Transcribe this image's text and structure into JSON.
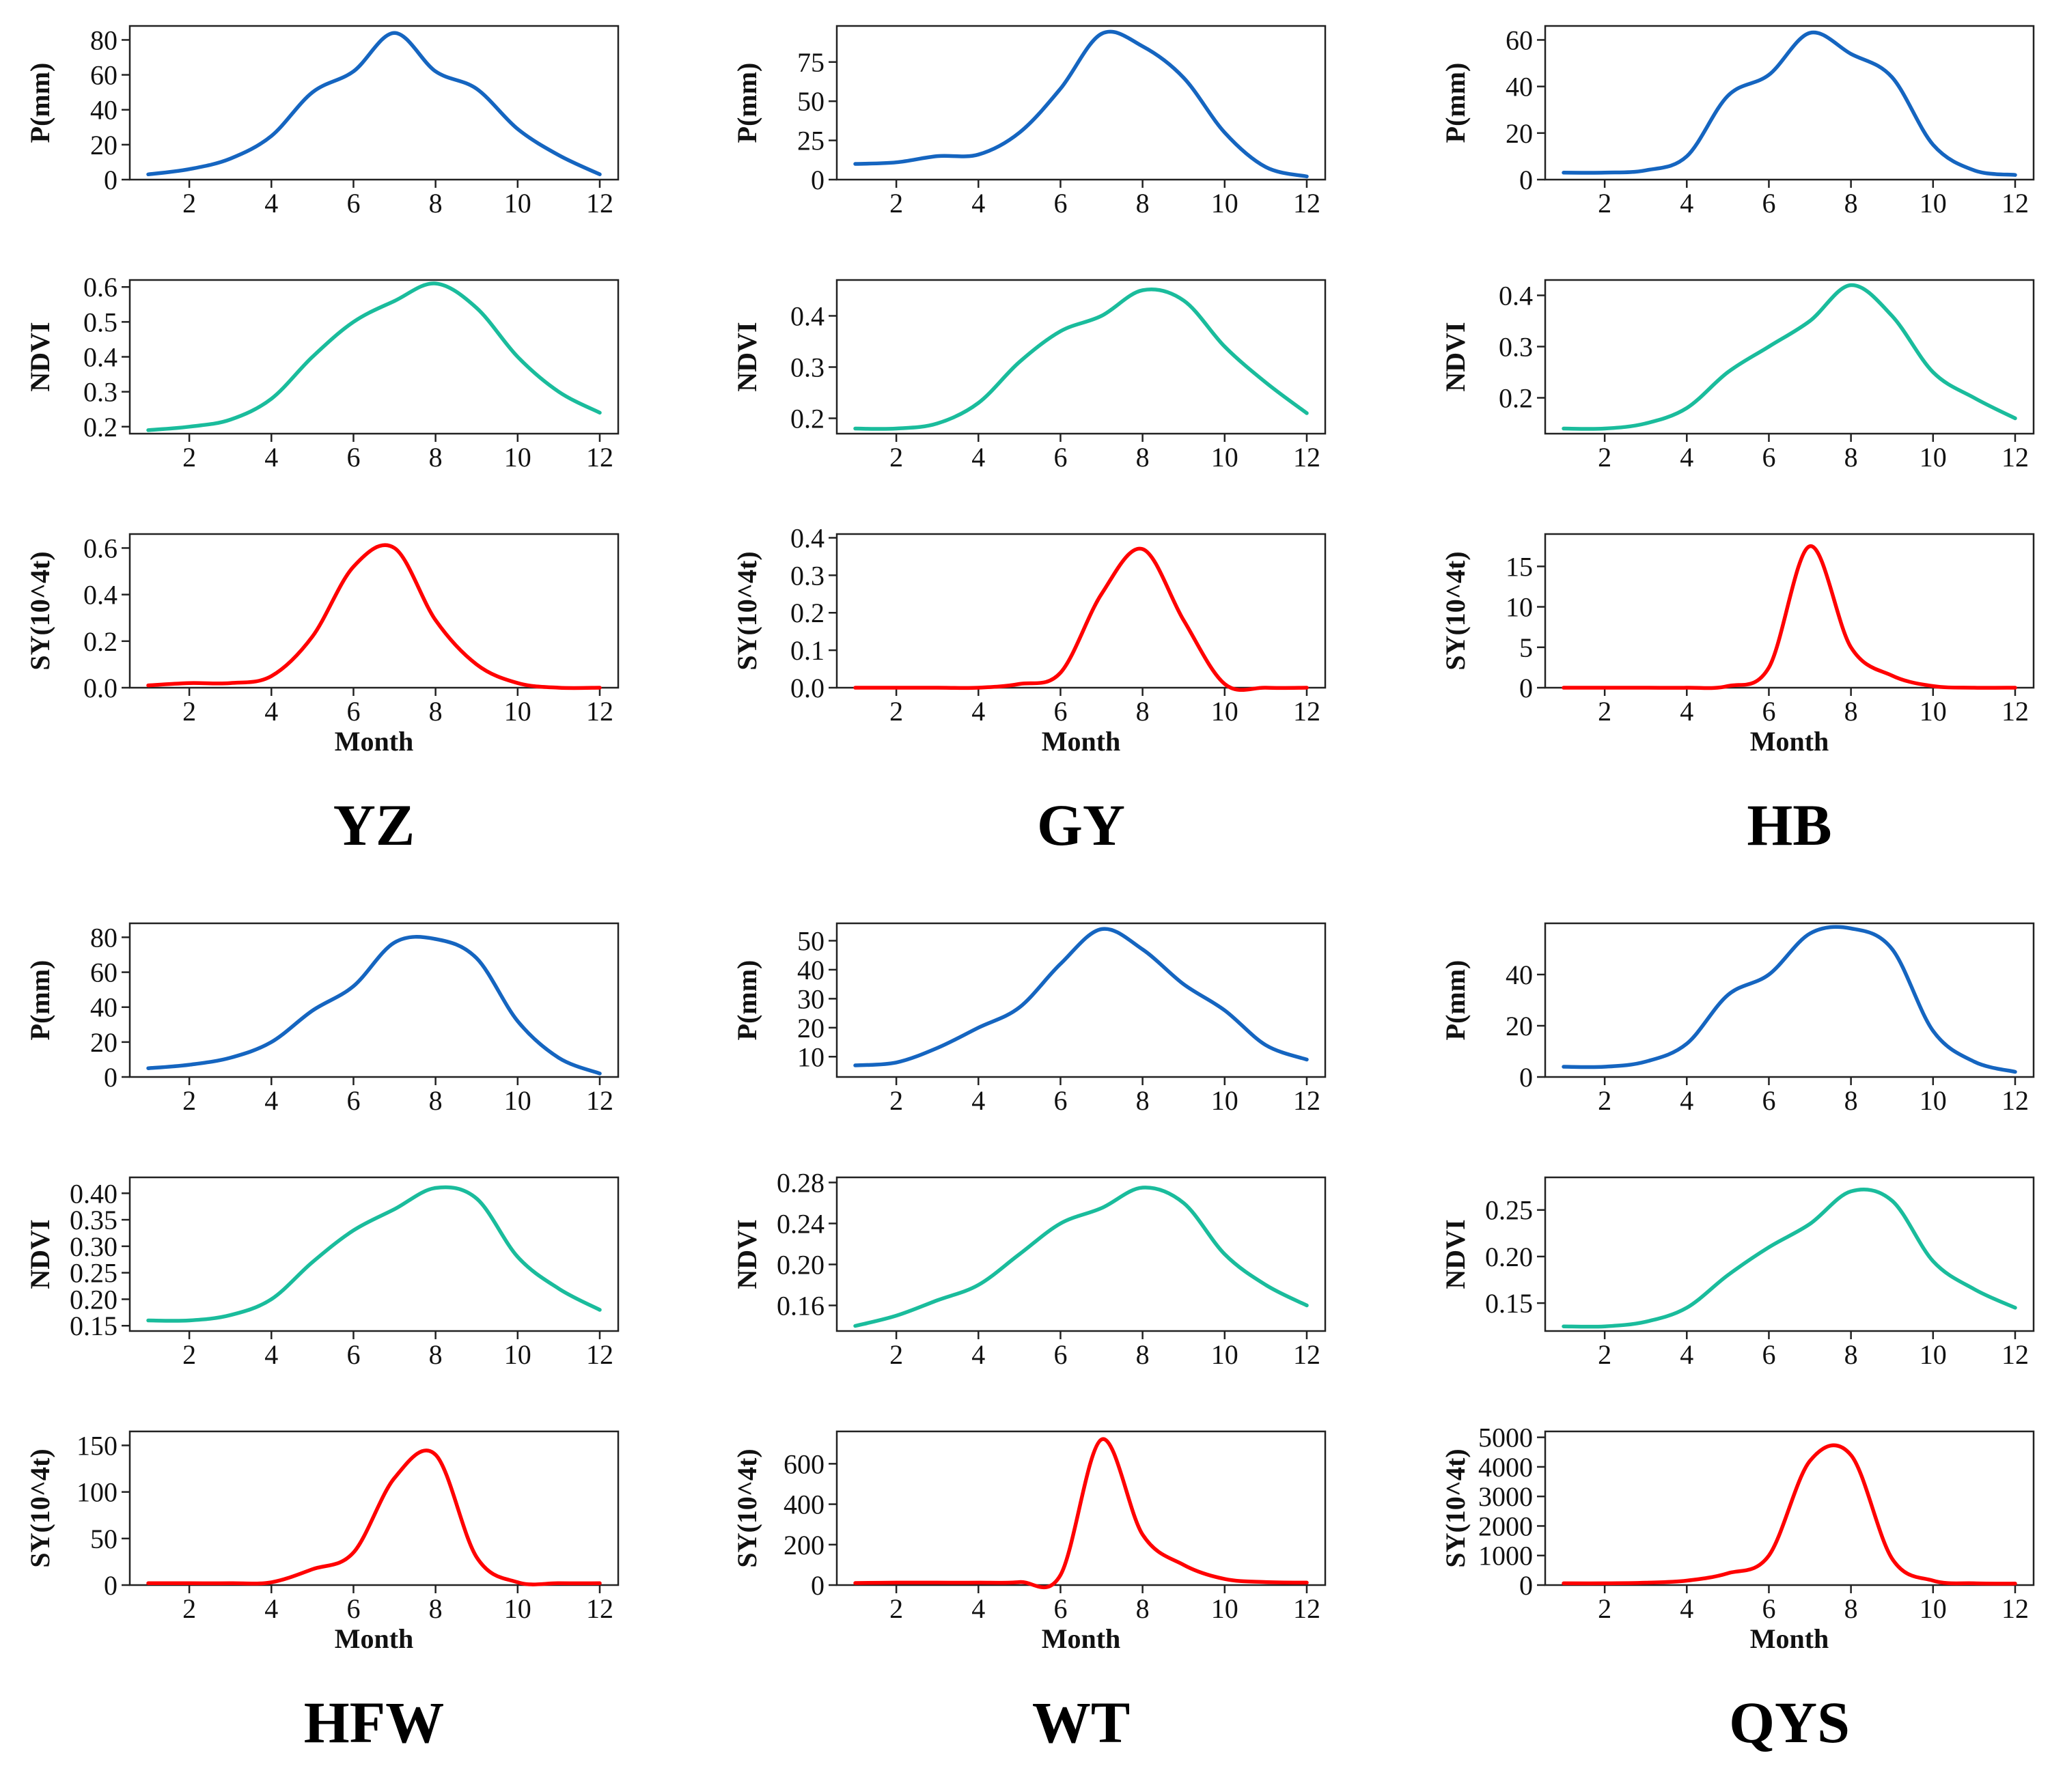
{
  "colors": {
    "precip": "#1565C0",
    "ndvi": "#1ABC9C",
    "sy": "#FF0000",
    "axis": "#222222"
  },
  "chart_data": [
    {
      "type": "line",
      "title": "YZ",
      "xlabel": "Month",
      "x": [
        1,
        2,
        3,
        4,
        5,
        6,
        7,
        8,
        9,
        10,
        11,
        12
      ],
      "xticks": [
        "2",
        "4",
        "6",
        "8",
        "10",
        "12"
      ],
      "subplots": [
        {
          "name": "P",
          "ylabel": "P(mm)",
          "color": "precip",
          "ylim": [
            0,
            88
          ],
          "yticks": [
            0,
            20,
            40,
            60,
            80
          ],
          "yticklabels": [
            "0",
            "20",
            "40",
            "60",
            "80"
          ],
          "values": [
            3,
            6,
            12,
            25,
            50,
            62,
            84,
            62,
            52,
            29,
            14,
            3
          ]
        },
        {
          "name": "NDVI",
          "ylabel": "NDVI",
          "color": "ndvi",
          "ylim": [
            0.18,
            0.62
          ],
          "yticks": [
            0.2,
            0.3,
            0.4,
            0.5,
            0.6
          ],
          "yticklabels": [
            "0.2",
            "0.3",
            "0.4",
            "0.5",
            "0.6"
          ],
          "values": [
            0.19,
            0.2,
            0.22,
            0.28,
            0.4,
            0.5,
            0.56,
            0.61,
            0.54,
            0.4,
            0.3,
            0.24
          ]
        },
        {
          "name": "SY",
          "ylabel": "SY(10^4t)",
          "color": "sy",
          "ylim": [
            0,
            0.66
          ],
          "yticks": [
            0,
            0.2,
            0.4,
            0.6
          ],
          "yticklabels": [
            "0.0",
            "0.2",
            "0.4",
            "0.6"
          ],
          "values": [
            0.01,
            0.02,
            0.02,
            0.05,
            0.22,
            0.52,
            0.6,
            0.29,
            0.1,
            0.02,
            0.0,
            0.0
          ]
        }
      ]
    },
    {
      "type": "line",
      "title": "GY",
      "xlabel": "Month",
      "x": [
        1,
        2,
        3,
        4,
        5,
        6,
        7,
        8,
        9,
        10,
        11,
        12
      ],
      "xticks": [
        "2",
        "4",
        "6",
        "8",
        "10",
        "12"
      ],
      "subplots": [
        {
          "name": "P",
          "ylabel": "P(mm)",
          "color": "precip",
          "ylim": [
            0,
            98
          ],
          "yticks": [
            0,
            25,
            50,
            75
          ],
          "yticklabels": [
            "0",
            "25",
            "50",
            "75"
          ],
          "values": [
            10,
            11,
            15,
            16,
            30,
            58,
            93,
            85,
            65,
            30,
            8,
            2
          ]
        },
        {
          "name": "NDVI",
          "ylabel": "NDVI",
          "color": "ndvi",
          "ylim": [
            0.17,
            0.47
          ],
          "yticks": [
            0.2,
            0.3,
            0.4
          ],
          "yticklabels": [
            "0.2",
            "0.3",
            "0.4"
          ],
          "values": [
            0.18,
            0.18,
            0.19,
            0.23,
            0.31,
            0.37,
            0.4,
            0.45,
            0.43,
            0.34,
            0.27,
            0.21
          ]
        },
        {
          "name": "SY",
          "ylabel": "SY(10^4t)",
          "color": "sy",
          "ylim": [
            0,
            0.41
          ],
          "yticks": [
            0,
            0.1,
            0.2,
            0.3,
            0.4
          ],
          "yticklabels": [
            "0.0",
            "0.1",
            "0.2",
            "0.3",
            "0.4"
          ],
          "values": [
            0.0,
            0.0,
            0.0,
            0.0,
            0.01,
            0.04,
            0.25,
            0.37,
            0.18,
            0.01,
            0.0,
            0.0
          ]
        }
      ]
    },
    {
      "type": "line",
      "title": "HB",
      "xlabel": "Month",
      "x": [
        1,
        2,
        3,
        4,
        5,
        6,
        7,
        8,
        9,
        10,
        11,
        12
      ],
      "xticks": [
        "2",
        "4",
        "6",
        "8",
        "10",
        "12"
      ],
      "subplots": [
        {
          "name": "P",
          "ylabel": "P(mm)",
          "color": "precip",
          "ylim": [
            0,
            66
          ],
          "yticks": [
            0,
            20,
            40,
            60
          ],
          "yticklabels": [
            "0",
            "20",
            "40",
            "60"
          ],
          "values": [
            3,
            3,
            4,
            10,
            36,
            45,
            63,
            54,
            44,
            15,
            4,
            2
          ]
        },
        {
          "name": "NDVI",
          "ylabel": "NDVI",
          "color": "ndvi",
          "ylim": [
            0.13,
            0.43
          ],
          "yticks": [
            0.2,
            0.3,
            0.4
          ],
          "yticklabels": [
            "0.2",
            "0.3",
            "0.4"
          ],
          "values": [
            0.14,
            0.14,
            0.15,
            0.18,
            0.25,
            0.3,
            0.35,
            0.42,
            0.36,
            0.25,
            0.2,
            0.16
          ]
        },
        {
          "name": "SY",
          "ylabel": "SY(10^4t)",
          "color": "sy",
          "ylim": [
            0,
            19
          ],
          "yticks": [
            0,
            5,
            10,
            15
          ],
          "yticklabels": [
            "0",
            "5",
            "10",
            "15"
          ],
          "values": [
            0,
            0,
            0,
            0,
            0.2,
            2.5,
            17.5,
            5,
            1.5,
            0.2,
            0,
            0
          ]
        }
      ]
    },
    {
      "type": "line",
      "title": "HFW",
      "xlabel": "Month",
      "x": [
        1,
        2,
        3,
        4,
        5,
        6,
        7,
        8,
        9,
        10,
        11,
        12
      ],
      "xticks": [
        "2",
        "4",
        "6",
        "8",
        "10",
        "12"
      ],
      "subplots": [
        {
          "name": "P",
          "ylabel": "P(mm)",
          "color": "precip",
          "ylim": [
            0,
            88
          ],
          "yticks": [
            0,
            20,
            40,
            60,
            80
          ],
          "yticklabels": [
            "0",
            "20",
            "40",
            "60",
            "80"
          ],
          "values": [
            5,
            7,
            11,
            20,
            38,
            52,
            77,
            79,
            68,
            32,
            11,
            2
          ]
        },
        {
          "name": "NDVI",
          "ylabel": "NDVI",
          "color": "ndvi",
          "ylim": [
            0.14,
            0.43
          ],
          "yticks": [
            0.15,
            0.2,
            0.25,
            0.3,
            0.35,
            0.4
          ],
          "yticklabels": [
            "0.15",
            "0.20",
            "0.25",
            "0.30",
            "0.35",
            "0.40"
          ],
          "values": [
            0.16,
            0.16,
            0.17,
            0.2,
            0.27,
            0.33,
            0.37,
            0.41,
            0.39,
            0.28,
            0.22,
            0.18
          ]
        },
        {
          "name": "SY",
          "ylabel": "SY(10^4t)",
          "color": "sy",
          "ylim": [
            0,
            165
          ],
          "yticks": [
            0,
            50,
            100,
            150
          ],
          "yticklabels": [
            "0",
            "50",
            "100",
            "150"
          ],
          "values": [
            2,
            2,
            2,
            3,
            17,
            35,
            115,
            140,
            30,
            3,
            2,
            2
          ]
        }
      ]
    },
    {
      "type": "line",
      "title": "WT",
      "xlabel": "Month",
      "x": [
        1,
        2,
        3,
        4,
        5,
        6,
        7,
        8,
        9,
        10,
        11,
        12
      ],
      "xticks": [
        "2",
        "4",
        "6",
        "8",
        "10",
        "12"
      ],
      "subplots": [
        {
          "name": "P",
          "ylabel": "P(mm)",
          "color": "precip",
          "ylim": [
            3,
            56
          ],
          "yticks": [
            10,
            20,
            30,
            40,
            50
          ],
          "yticklabels": [
            "10",
            "20",
            "30",
            "40",
            "50"
          ],
          "values": [
            7,
            8,
            13,
            20,
            27,
            42,
            54,
            47,
            35,
            26,
            14,
            9
          ]
        },
        {
          "name": "NDVI",
          "ylabel": "NDVI",
          "color": "ndvi",
          "ylim": [
            0.135,
            0.285
          ],
          "yticks": [
            0.16,
            0.2,
            0.24,
            0.28
          ],
          "yticklabels": [
            "0.16",
            "0.20",
            "0.24",
            "0.28"
          ],
          "values": [
            0.14,
            0.15,
            0.165,
            0.18,
            0.21,
            0.24,
            0.255,
            0.275,
            0.26,
            0.21,
            0.18,
            0.16
          ]
        },
        {
          "name": "SY",
          "ylabel": "SY(10^4t)",
          "color": "sy",
          "ylim": [
            0,
            760
          ],
          "yticks": [
            0,
            200,
            400,
            600
          ],
          "yticklabels": [
            "0",
            "200",
            "400",
            "600"
          ],
          "values": [
            10,
            12,
            12,
            12,
            15,
            50,
            720,
            250,
            100,
            30,
            15,
            12
          ]
        }
      ]
    },
    {
      "type": "line",
      "title": "QYS",
      "xlabel": "Month",
      "x": [
        1,
        2,
        3,
        4,
        5,
        6,
        7,
        8,
        9,
        10,
        11,
        12
      ],
      "xticks": [
        "2",
        "4",
        "6",
        "8",
        "10",
        "12"
      ],
      "subplots": [
        {
          "name": "P",
          "ylabel": "P(mm)",
          "color": "precip",
          "ylim": [
            0,
            60
          ],
          "yticks": [
            0,
            20,
            40
          ],
          "yticklabels": [
            "0",
            "20",
            "40"
          ],
          "values": [
            4,
            4,
            6,
            13,
            32,
            40,
            56,
            58,
            50,
            18,
            6,
            2
          ]
        },
        {
          "name": "NDVI",
          "ylabel": "NDVI",
          "color": "ndvi",
          "ylim": [
            0.12,
            0.285
          ],
          "yticks": [
            0.15,
            0.2,
            0.25
          ],
          "yticklabels": [
            "0.15",
            "0.20",
            "0.25"
          ],
          "values": [
            0.125,
            0.125,
            0.13,
            0.145,
            0.18,
            0.21,
            0.235,
            0.27,
            0.26,
            0.195,
            0.165,
            0.145
          ]
        },
        {
          "name": "SY",
          "ylabel": "SY(10^4t)",
          "color": "sy",
          "ylim": [
            0,
            5200
          ],
          "yticks": [
            0,
            1000,
            2000,
            3000,
            4000,
            5000
          ],
          "yticklabels": [
            "0",
            "1000",
            "2000",
            "3000",
            "4000",
            "5000"
          ],
          "values": [
            60,
            60,
            80,
            150,
            400,
            1000,
            4200,
            4400,
            900,
            150,
            60,
            50
          ]
        }
      ]
    }
  ]
}
